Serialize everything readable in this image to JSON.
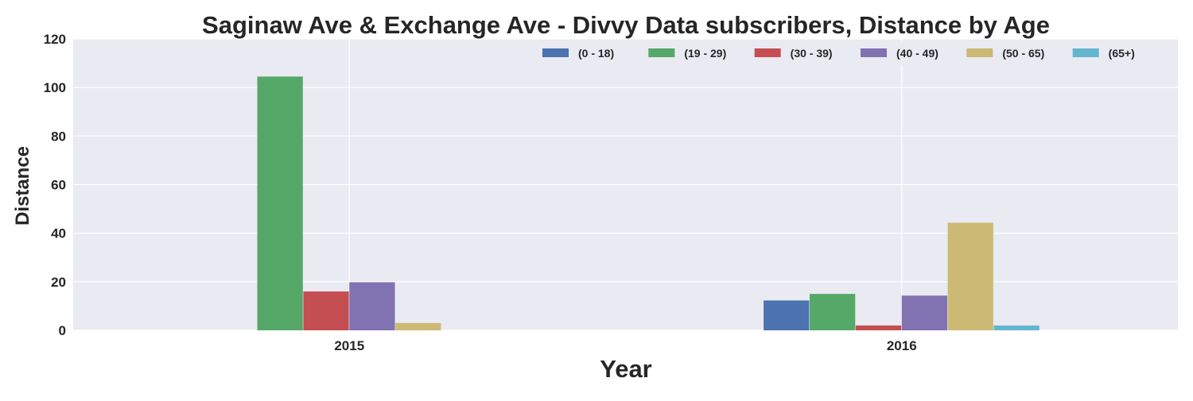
{
  "chart_data": {
    "type": "bar",
    "title": "Saginaw Ave & Exchange Ave - Divvy Data subscribers, Distance by Age",
    "xlabel": "Year",
    "ylabel": "Distance",
    "categories": [
      "2015",
      "2016"
    ],
    "ylim": [
      0,
      120
    ],
    "yticks": [
      "0",
      "20",
      "40",
      "60",
      "80",
      "100",
      "120"
    ],
    "grid": true,
    "legend_position": "top-right",
    "series": [
      {
        "name": "(0 - 18)",
        "color": "#4C72B0",
        "values": [
          0,
          12.3
        ]
      },
      {
        "name": "(19 - 29)",
        "color": "#55A868",
        "values": [
          104.5,
          15
        ]
      },
      {
        "name": "(30 - 39)",
        "color": "#C44E52",
        "values": [
          16,
          2
        ]
      },
      {
        "name": "(40 - 49)",
        "color": "#8172B2",
        "values": [
          19.8,
          14.3
        ]
      },
      {
        "name": "(50 - 65)",
        "color": "#CCB974",
        "values": [
          3,
          44.3
        ]
      },
      {
        "name": "(65+)",
        "color": "#64B5CD",
        "values": [
          0,
          2
        ]
      }
    ]
  }
}
